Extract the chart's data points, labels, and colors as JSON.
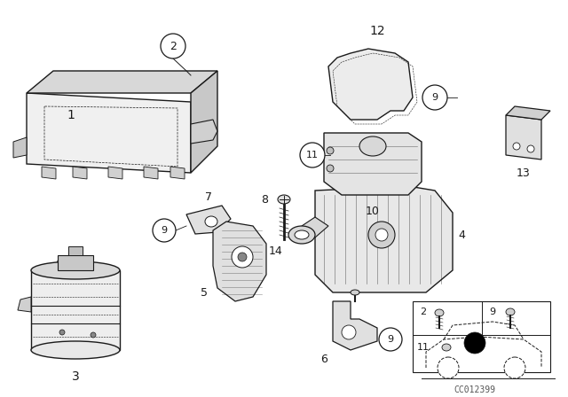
{
  "background_color": "#ffffff",
  "line_color": "#1a1a1a",
  "watermark": "CC012399",
  "fig_w": 6.4,
  "fig_h": 4.48,
  "dpi": 100
}
